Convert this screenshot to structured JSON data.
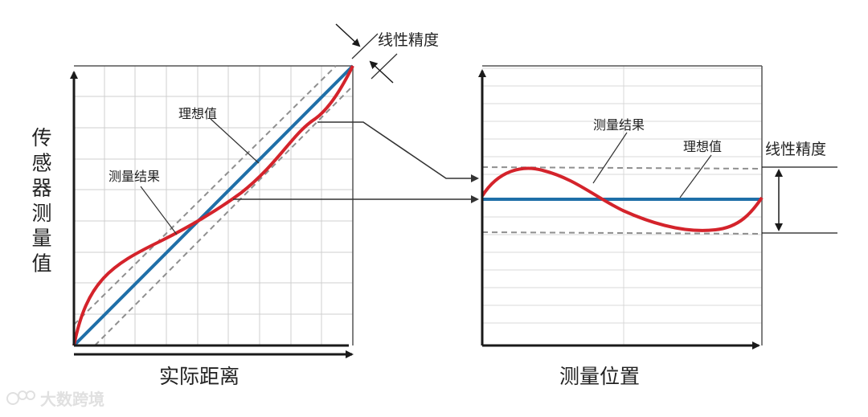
{
  "left_chart": {
    "y_axis_label": "传感器测量值",
    "x_axis_label": "实际距离",
    "ideal_label": "理想值",
    "measured_label": "测量结果",
    "accuracy_label": "线性精度"
  },
  "right_chart": {
    "x_axis_label": "测量位置",
    "ideal_label": "理想值",
    "measured_label": "测量结果",
    "accuracy_label": "线性精度"
  },
  "watermark": "大数跨境",
  "colors": {
    "ideal": "#1f6fa8",
    "measured": "#d4232b",
    "tolerance": "#8f8f8f",
    "axis": "#1a1a1a",
    "grid": "#cfcfcf"
  }
}
